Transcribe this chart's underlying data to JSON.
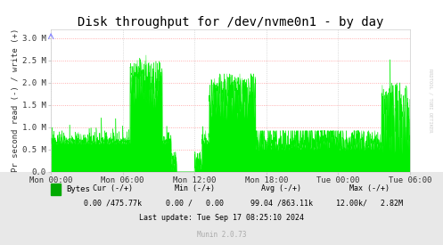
{
  "title": "Disk throughput for /dev/nvme0n1 - by day",
  "ylabel": "Pr second read (-) / write (+)",
  "bg_color": "#FFFFFF",
  "plot_bg_color": "#FFFFFF",
  "line_color": "#00EE00",
  "legend_color": "#00AA00",
  "ytick_vals": [
    0.0,
    0.5,
    1.0,
    1.5,
    2.0,
    2.5,
    3.0
  ],
  "ytick_labels": [
    "0.0",
    "0.5 M",
    "1.0 M",
    "1.5 M",
    "2.0 M",
    "2.5 M",
    "3.0 M"
  ],
  "xtick_labels": [
    "Mon 00:00",
    "Mon 06:00",
    "Mon 12:00",
    "Mon 18:00",
    "Tue 00:00",
    "Tue 06:00"
  ],
  "ylim": [
    0.0,
    3.2
  ],
  "xlim": [
    0,
    5
  ],
  "rrdtool_text": "RRDTOOL / TOBI OETIKER",
  "footer_munin": "Munin 2.0.73",
  "title_fontsize": 10,
  "axis_fontsize": 6.5,
  "footer_fontsize": 6,
  "munin_fontsize": 5.5,
  "grid_h_color": "#FF9999",
  "grid_v_color": "#CCCCCC",
  "grid_linestyle": ":"
}
